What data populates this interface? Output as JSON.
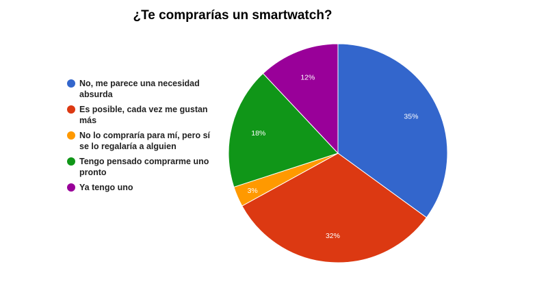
{
  "chart_data": {
    "type": "pie",
    "title": "¿Te comprarías un smartwatch?",
    "legend_position": "left",
    "slices": [
      {
        "name": "No, me parece una necesidad absurda",
        "value": 35,
        "label": "35%",
        "color": "#3366cc"
      },
      {
        "name": "Es posible, cada vez me gustan más",
        "value": 32,
        "label": "32%",
        "color": "#dc3912"
      },
      {
        "name": "No lo compraría para mí, pero sí se lo regalaría a alguien",
        "value": 3,
        "label": "3%",
        "color": "#ff9900"
      },
      {
        "name": "Tengo pensado comprarme uno pronto",
        "value": 18,
        "label": "18%",
        "color": "#109618"
      },
      {
        "name": "Ya tengo uno",
        "value": 12,
        "label": "12%",
        "color": "#990099"
      }
    ]
  }
}
